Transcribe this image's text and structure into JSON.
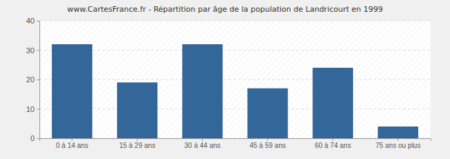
{
  "chart_data": {
    "type": "bar",
    "title": "www.CartesFrance.fr - Répartition par âge de la population de Landricourt en 1999",
    "categories": [
      "0 à 14 ans",
      "15 à 29 ans",
      "30 à 44 ans",
      "45 à 59 ans",
      "60 à 74 ans",
      "75 ans ou plus"
    ],
    "values": [
      32,
      19,
      32,
      17,
      24,
      4
    ],
    "color": "#336699",
    "ylim": [
      0,
      40
    ],
    "yticks": [
      0,
      10,
      20,
      30,
      40
    ],
    "grid": true
  }
}
